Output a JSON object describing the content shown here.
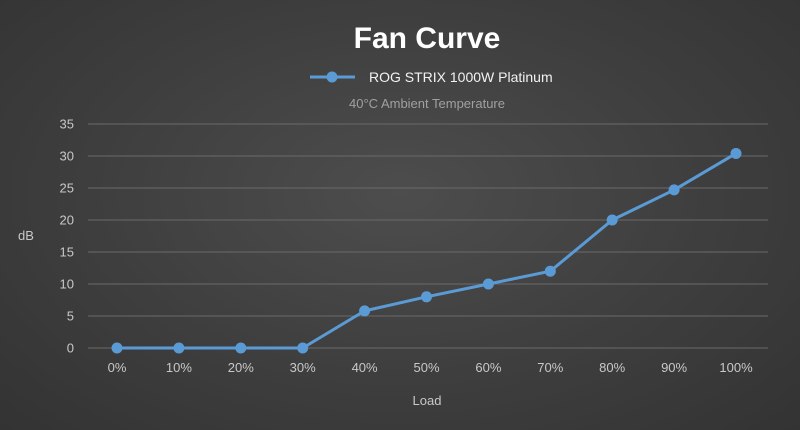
{
  "chart_data": {
    "type": "line",
    "title": "Fan Curve",
    "subtitle": "40°C Ambient Temperature",
    "xlabel": "Load",
    "ylabel": "dB",
    "categories": [
      "0%",
      "10%",
      "20%",
      "30%",
      "40%",
      "50%",
      "60%",
      "70%",
      "80%",
      "90%",
      "100%"
    ],
    "series": [
      {
        "name": "ROG STRIX 1000W Platinum",
        "values": [
          0,
          0,
          0,
          0,
          5.8,
          8,
          10,
          12,
          20,
          24.7,
          30.4
        ],
        "color": "#5b9bd5"
      }
    ],
    "ylim": [
      0,
      35
    ],
    "yticks": [
      0,
      5,
      10,
      15,
      20,
      25,
      30,
      35
    ],
    "grid": true,
    "legend": "top-center"
  }
}
